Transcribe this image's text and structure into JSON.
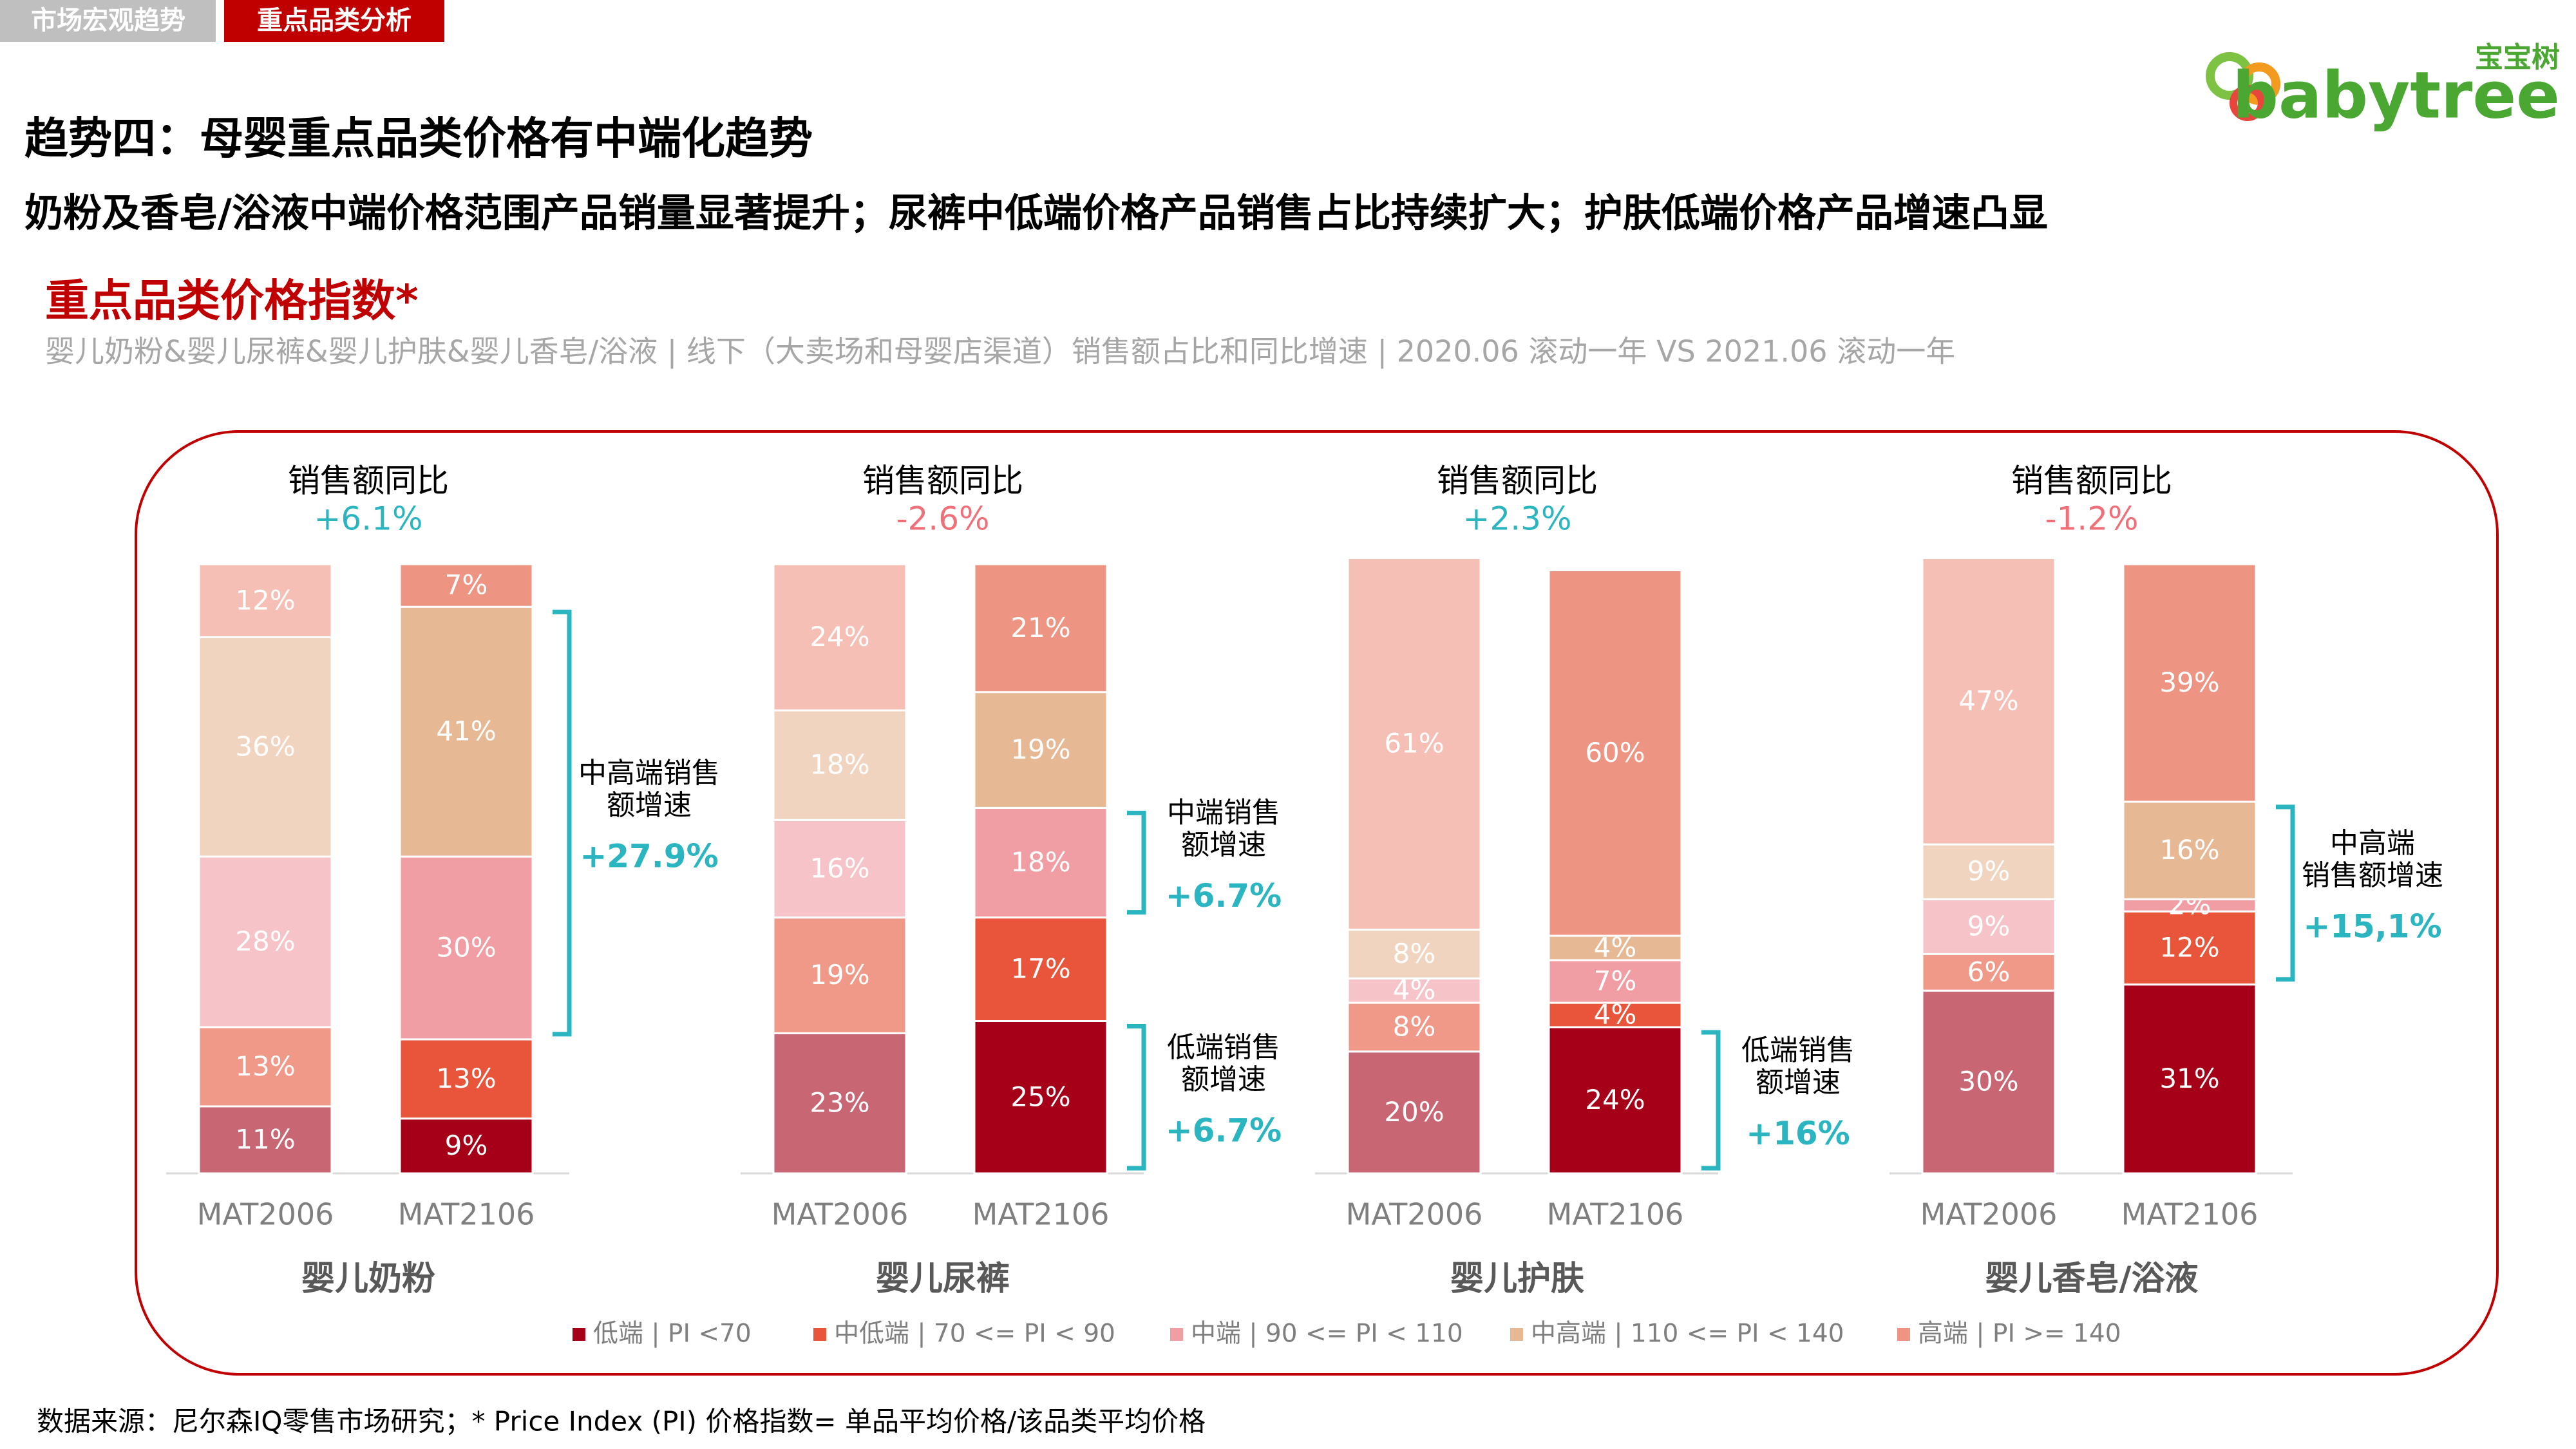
{
  "tabs": [
    "市场宏观趋势",
    "重点品类分析"
  ],
  "logo": {
    "cn": "宝宝树",
    "en": "babytree"
  },
  "title": "趋势四：母婴重点品类价格有中端化趋势",
  "subtitle": "奶粉及香皂/浴液中端价格范围产品销量显著提升；尿裤中低端价格产品销售占比持续扩大；护肤低端价格产品增速凸显",
  "section_title": "重点品类价格指数*",
  "section_desc": "婴儿奶粉&婴儿尿裤&婴儿护肤&婴儿香皂/浴液 | 线下（大卖场和母婴店渠道）销售额占比和同比增速 | 2020.06 滚动一年 VS 2021.06 滚动一年",
  "legend": [
    {
      "name": "低端 | PI <70",
      "color": "#a50017"
    },
    {
      "name": "中低端 | 70 <= PI < 90",
      "color": "#e8553a"
    },
    {
      "name": "中端 | 90 <= PI < 110",
      "color": "#f09da4"
    },
    {
      "name": "中高端 | 110 <= PI < 140",
      "color": "#e6b894"
    },
    {
      "name": "高端 | PI >= 140",
      "color": "#ee9483"
    }
  ],
  "chart_data": [
    {
      "type": "stacked_bar",
      "title": "婴儿奶粉",
      "yoy_title": "销售额同比",
      "yoy": 6.1,
      "yoy_label": "+6.1%",
      "categories": [
        "MAT2006",
        "MAT2106"
      ],
      "series": [
        {
          "values": [
            11,
            9
          ],
          "value_labels": [
            "11%",
            "9%"
          ]
        },
        {
          "values": [
            13,
            13
          ],
          "value_labels": [
            "13%",
            "13%"
          ]
        },
        {
          "values": [
            28,
            30
          ],
          "value_labels": [
            "28%",
            "30%"
          ]
        },
        {
          "values": [
            36,
            41
          ],
          "value_labels": [
            "36%",
            "41%"
          ]
        },
        {
          "values": [
            12,
            7
          ],
          "value_labels": [
            "12%",
            "7%"
          ]
        }
      ],
      "annotations": [
        {
          "lines": [
            "中高端销售",
            "额增速"
          ],
          "growth": "+27.9%"
        }
      ]
    },
    {
      "type": "stacked_bar",
      "title": "婴儿尿裤",
      "yoy_title": "销售额同比",
      "yoy": -2.6,
      "yoy_label": "-2.6%",
      "categories": [
        "MAT2006",
        "MAT2106"
      ],
      "series": [
        {
          "values": [
            23,
            25
          ],
          "value_labels": [
            "23%",
            "25%"
          ]
        },
        {
          "values": [
            19,
            17
          ],
          "value_labels": [
            "19%",
            "17%"
          ]
        },
        {
          "values": [
            16,
            18
          ],
          "value_labels": [
            "16%",
            "18%"
          ]
        },
        {
          "values": [
            18,
            19
          ],
          "value_labels": [
            "18%",
            "19%"
          ]
        },
        {
          "values": [
            24,
            21
          ],
          "value_labels": [
            "24%",
            "21%"
          ]
        }
      ],
      "annotations": [
        {
          "lines": [
            "中端销售",
            "额增速"
          ],
          "growth": "+6.7%"
        },
        {
          "lines": [
            "低端销售",
            "额增速"
          ],
          "growth": "+6.7%"
        }
      ]
    },
    {
      "type": "stacked_bar",
      "title": "婴儿护肤",
      "yoy_title": "销售额同比",
      "yoy": 2.3,
      "yoy_label": "+2.3%",
      "categories": [
        "MAT2006",
        "MAT2106"
      ],
      "series": [
        {
          "values": [
            20,
            24
          ],
          "value_labels": [
            "20%",
            "24%"
          ]
        },
        {
          "values": [
            8,
            4
          ],
          "value_labels": [
            "8%",
            "4%"
          ]
        },
        {
          "values": [
            4,
            7
          ],
          "value_labels": [
            "4%",
            "7%"
          ]
        },
        {
          "values": [
            8,
            4
          ],
          "value_labels": [
            "8%",
            "4%"
          ]
        },
        {
          "values": [
            61,
            60
          ],
          "value_labels": [
            "61%",
            "60%"
          ]
        }
      ],
      "annotations": [
        {
          "lines": [
            "低端销售",
            "额增速"
          ],
          "growth": "+16%"
        }
      ]
    },
    {
      "type": "stacked_bar",
      "title": "婴儿香皂/浴液",
      "yoy_title": "销售额同比",
      "yoy": -1.2,
      "yoy_label": "-1.2%",
      "categories": [
        "MAT2006",
        "MAT2106"
      ],
      "series": [
        {
          "values": [
            30,
            31
          ],
          "value_labels": [
            "30%",
            "31%"
          ]
        },
        {
          "values": [
            6,
            12
          ],
          "value_labels": [
            "6%",
            "12%"
          ]
        },
        {
          "values": [
            9,
            2
          ],
          "value_labels": [
            "9%",
            "2%"
          ]
        },
        {
          "values": [
            9,
            16
          ],
          "value_labels": [
            "9%",
            "16%"
          ]
        },
        {
          "values": [
            47,
            39
          ],
          "value_labels": [
            "47%",
            "39%"
          ]
        }
      ],
      "annotations": [
        {
          "lines": [
            "中高端",
            "销售额增速"
          ],
          "growth": "+15,1%"
        }
      ]
    }
  ],
  "footnote": "数据来源：尼尔森IQ零售市场研究；* Price Index (PI) 价格指数= 单品平均价格/该品类平均价格"
}
